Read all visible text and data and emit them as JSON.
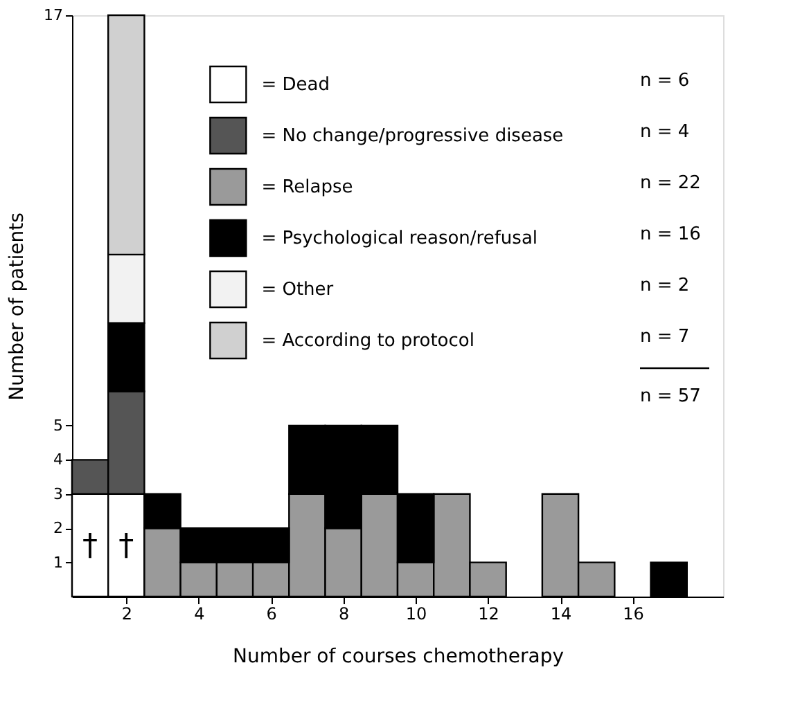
{
  "chart_data": {
    "type": "bar",
    "stacked": true,
    "xlabel": "Number of courses chemotherapy",
    "ylabel": "Number of patients",
    "x": [
      1,
      2,
      3,
      4,
      5,
      6,
      7,
      8,
      9,
      10,
      11,
      12,
      13,
      14,
      15,
      16,
      17
    ],
    "xlim": [
      0.5,
      18.5
    ],
    "xticks": [
      2,
      4,
      6,
      8,
      10,
      12,
      14,
      16
    ],
    "ylim": [
      0,
      17
    ],
    "yticks": [
      1,
      2,
      3,
      4,
      5,
      17
    ],
    "grid": false,
    "legend": "top right",
    "series": [
      {
        "name": "= Dead",
        "color": "#ffffff",
        "values": [
          3,
          3,
          null,
          null,
          null,
          null,
          null,
          null,
          null,
          null,
          null,
          null,
          null,
          null,
          null,
          null,
          null
        ]
      },
      {
        "name": "= No change/progressive disease",
        "color": "#555555",
        "values": [
          1,
          3,
          null,
          null,
          null,
          null,
          null,
          null,
          null,
          null,
          null,
          null,
          null,
          null,
          null,
          null,
          null
        ]
      },
      {
        "name": "= Relapse",
        "color": "#9a9a9a",
        "values": [
          null,
          null,
          2,
          1,
          1,
          1,
          3,
          2,
          3,
          1,
          3,
          1,
          null,
          3,
          1,
          null,
          null
        ]
      },
      {
        "name": "= Psychological reason/refusal",
        "color": "#000000",
        "values": [
          null,
          2,
          1,
          1,
          1,
          1,
          2,
          3,
          2,
          2,
          null,
          null,
          null,
          null,
          null,
          null,
          1
        ]
      },
      {
        "name": "= Other",
        "color": "#f2f2f2",
        "values": [
          null,
          2,
          null,
          null,
          null,
          null,
          null,
          null,
          null,
          null,
          null,
          null,
          null,
          null,
          null,
          null,
          null
        ]
      },
      {
        "name": "= According to protocol",
        "color": "#d0d0d0",
        "values": [
          null,
          7,
          null,
          null,
          null,
          null,
          null,
          null,
          null,
          null,
          null,
          null,
          null,
          null,
          null,
          null,
          null
        ]
      }
    ],
    "annotations": [
      "n = 6",
      "n = 4",
      "n = 22",
      "n = 16",
      "n = 2",
      "n = 7",
      "n = 57",
      {
        "text": "†",
        "x": 1,
        "y": 3
      },
      {
        "text": "†",
        "x": 2,
        "y": 3
      }
    ]
  }
}
